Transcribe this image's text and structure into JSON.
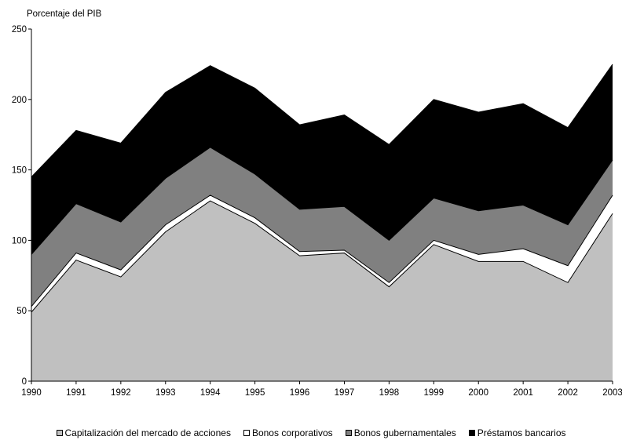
{
  "chart_data": {
    "type": "area",
    "stacked": true,
    "title": "",
    "ylabel": "Porcentaje del PIB",
    "xlabel": "",
    "ylim": [
      0,
      250
    ],
    "yticks": [
      0,
      50,
      100,
      150,
      200,
      250
    ],
    "grid": false,
    "legend_position": "bottom",
    "x": [
      "1990",
      "1991",
      "1992",
      "1993",
      "1994",
      "1995",
      "1996",
      "1997",
      "1998",
      "1999",
      "2000",
      "2001",
      "2002",
      "2003"
    ],
    "series": [
      {
        "name": "Capitalización del mercado de acciones",
        "color": "#c0c0c0",
        "values": [
          49,
          86,
          74,
          106,
          128,
          112,
          89,
          91,
          67,
          97,
          85,
          85,
          70,
          119
        ]
      },
      {
        "name": "Bonos corporativos",
        "color": "#ffffff",
        "values": [
          4,
          5,
          5,
          5,
          4,
          4,
          3,
          2,
          3,
          3,
          5,
          9,
          12,
          13
        ]
      },
      {
        "name": "Bonos gubernamentales",
        "color": "#808080",
        "values": [
          37,
          35,
          34,
          33,
          34,
          31,
          30,
          31,
          30,
          30,
          31,
          31,
          29,
          25
        ]
      },
      {
        "name": "Préstamos bancarios",
        "color": "#000000",
        "values": [
          55,
          52,
          56,
          61,
          58,
          61,
          60,
          65,
          68,
          70,
          70,
          72,
          69,
          68
        ]
      }
    ]
  }
}
